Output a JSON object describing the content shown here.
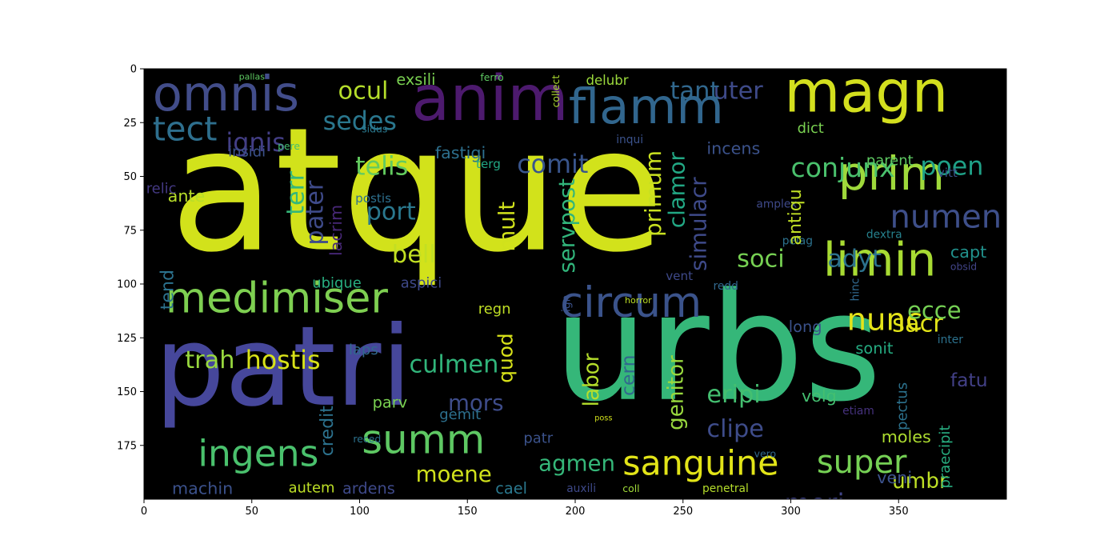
{
  "chart_data": {
    "type": "wordcloud",
    "title": "",
    "xlabel": "",
    "ylabel": "",
    "xlim": [
      0,
      400
    ],
    "ylim": [
      200,
      0
    ],
    "x_ticks": [
      "0",
      "50",
      "100",
      "150",
      "200",
      "250",
      "300",
      "350"
    ],
    "y_ticks": [
      "0",
      "25",
      "50",
      "75",
      "100",
      "125",
      "150",
      "175"
    ],
    "grid": false,
    "background": "#000000",
    "words": [
      {
        "text": "atque",
        "x": 12,
        "y": 25,
        "size": 155,
        "color": "#d2e21b"
      },
      {
        "text": "urbs",
        "x": 190,
        "y": 102,
        "size": 135,
        "color": "#35b779"
      },
      {
        "text": "patri",
        "x": 5,
        "y": 118,
        "size": 100,
        "color": "#46479b"
      },
      {
        "text": "anim",
        "x": 124,
        "y": 2,
        "size": 57,
        "color": "#4d1a6e"
      },
      {
        "text": "magn",
        "x": 297,
        "y": 0,
        "size": 52,
        "color": "#d3df1e"
      },
      {
        "text": "omnis",
        "x": 4,
        "y": 3,
        "size": 44,
        "color": "#424d8a"
      },
      {
        "text": "flamm",
        "x": 197,
        "y": 9,
        "size": 44,
        "color": "#31668e"
      },
      {
        "text": "prim",
        "x": 322,
        "y": 40,
        "size": 42,
        "color": "#9fd93b"
      },
      {
        "text": "limin",
        "x": 315,
        "y": 80,
        "size": 42,
        "color": "#a8db33"
      },
      {
        "text": "medimiser",
        "x": 10,
        "y": 99,
        "size": 38,
        "color": "#7ecf51"
      },
      {
        "text": "circum",
        "x": 193,
        "y": 101,
        "size": 38,
        "color": "#3b538b"
      },
      {
        "text": "summ",
        "x": 101,
        "y": 165,
        "size": 36,
        "color": "#5ec863"
      },
      {
        "text": "ingens",
        "x": 25,
        "y": 172,
        "size": 33,
        "color": "#4ac16d"
      },
      {
        "text": "sanguine",
        "x": 222,
        "y": 177,
        "size": 31,
        "color": "#e2e418"
      },
      {
        "text": "tect",
        "x": 4,
        "y": 22,
        "size": 30,
        "color": "#2e6f8e"
      },
      {
        "text": "numen",
        "x": 346,
        "y": 63,
        "size": 29,
        "color": "#3e4f8a"
      },
      {
        "text": "super",
        "x": 312,
        "y": 177,
        "size": 29,
        "color": "#75d054"
      },
      {
        "text": "nunc",
        "x": 326,
        "y": 111,
        "size": 28,
        "color": "#e5e419"
      },
      {
        "text": "conjunx",
        "x": 300,
        "y": 41,
        "size": 24,
        "color": "#4ac16d"
      },
      {
        "text": "mori",
        "x": 297,
        "y": 197,
        "size": 24,
        "color": "#404588"
      },
      {
        "text": "ignis",
        "x": 38,
        "y": 30,
        "size": 23,
        "color": "#433e85"
      },
      {
        "text": "sedes",
        "x": 83,
        "y": 20,
        "size": 23,
        "color": "#2a778e"
      },
      {
        "text": "telis",
        "x": 98,
        "y": 41,
        "size": 23,
        "color": "#63cb5f"
      },
      {
        "text": "comit",
        "x": 173,
        "y": 40,
        "size": 23,
        "color": "#39558c"
      },
      {
        "text": "poen",
        "x": 360,
        "y": 41,
        "size": 23,
        "color": "#1fa187"
      },
      {
        "text": "hostis",
        "x": 47,
        "y": 131,
        "size": 23,
        "color": "#d8e219"
      },
      {
        "text": "trah",
        "x": 19,
        "y": 131,
        "size": 22,
        "color": "#98d83e"
      },
      {
        "text": "culmen",
        "x": 123,
        "y": 133,
        "size": 22,
        "color": "#31b57b"
      },
      {
        "text": "adyt",
        "x": 317,
        "y": 84,
        "size": 22,
        "color": "#2c728e"
      },
      {
        "text": "soci",
        "x": 275,
        "y": 84,
        "size": 22,
        "color": "#77d153"
      },
      {
        "text": "ocul",
        "x": 90,
        "y": 6,
        "size": 22,
        "color": "#b5de2b"
      },
      {
        "text": "uter",
        "x": 264,
        "y": 6,
        "size": 22,
        "color": "#3e4a89"
      },
      {
        "text": "tant",
        "x": 244,
        "y": 6,
        "size": 22,
        "color": "#31688e"
      },
      {
        "text": "bell",
        "x": 115,
        "y": 82,
        "size": 22,
        "color": "#c2df23"
      },
      {
        "text": "port",
        "x": 103,
        "y": 62,
        "size": 22,
        "color": "#2a788e"
      },
      {
        "text": "sacr",
        "x": 347,
        "y": 114,
        "size": 22,
        "color": "#e2e418"
      },
      {
        "text": "ecce",
        "x": 354,
        "y": 108,
        "size": 21,
        "color": "#75d054"
      },
      {
        "text": "eripi",
        "x": 261,
        "y": 147,
        "size": 22,
        "color": "#44bf70"
      },
      {
        "text": "clipe",
        "x": 261,
        "y": 163,
        "size": 22,
        "color": "#3e4c8a"
      },
      {
        "text": "agmen",
        "x": 183,
        "y": 179,
        "size": 20,
        "color": "#35b779"
      },
      {
        "text": "mors",
        "x": 141,
        "y": 151,
        "size": 20,
        "color": "#3e4c8a"
      },
      {
        "text": "moene",
        "x": 126,
        "y": 184,
        "size": 20,
        "color": "#d0e11c"
      },
      {
        "text": "umbr",
        "x": 347,
        "y": 188,
        "size": 19,
        "color": "#bddf26"
      },
      {
        "text": "fatu",
        "x": 374,
        "y": 141,
        "size": 17,
        "color": "#424086"
      },
      {
        "text": "moles",
        "x": 342,
        "y": 168,
        "size": 15,
        "color": "#addc30"
      },
      {
        "text": "veni",
        "x": 340,
        "y": 187,
        "size": 15,
        "color": "#3b518b"
      },
      {
        "text": "capt",
        "x": 374,
        "y": 82,
        "size": 15,
        "color": "#21918c"
      },
      {
        "text": "volg",
        "x": 305,
        "y": 149,
        "size": 15,
        "color": "#44bf70"
      },
      {
        "text": "incens",
        "x": 261,
        "y": 34,
        "size": 15,
        "color": "#3b528b"
      },
      {
        "text": "fastigi",
        "x": 135,
        "y": 36,
        "size": 15,
        "color": "#2d708e"
      },
      {
        "text": "exsili",
        "x": 117,
        "y": 2,
        "size": 14,
        "color": "#7ad151"
      },
      {
        "text": "delubr",
        "x": 205,
        "y": 3,
        "size": 12,
        "color": "#9bd93c"
      },
      {
        "text": "dict",
        "x": 303,
        "y": 25,
        "size": 13,
        "color": "#7ad151"
      },
      {
        "text": "parent",
        "x": 335,
        "y": 40,
        "size": 13,
        "color": "#5ec962"
      },
      {
        "text": "ante",
        "x": 11,
        "y": 56,
        "size": 15,
        "color": "#b8de29"
      },
      {
        "text": "relic",
        "x": 1,
        "y": 53,
        "size": 13,
        "color": "#443983"
      },
      {
        "text": "insidi",
        "x": 39,
        "y": 36,
        "size": 13,
        "color": "#3b528b"
      },
      {
        "text": "ubique",
        "x": 78,
        "y": 97,
        "size": 13,
        "color": "#28ae80"
      },
      {
        "text": "aspici",
        "x": 119,
        "y": 97,
        "size": 13,
        "color": "#3e4989"
      },
      {
        "text": "laps",
        "x": 95,
        "y": 128,
        "size": 13,
        "color": "#31688e"
      },
      {
        "text": "regn",
        "x": 155,
        "y": 109,
        "size": 13,
        "color": "#c0df25"
      },
      {
        "text": "parv",
        "x": 106,
        "y": 152,
        "size": 14,
        "color": "#7ad151"
      },
      {
        "text": "gemit",
        "x": 137,
        "y": 158,
        "size": 13,
        "color": "#2d708e"
      },
      {
        "text": "patr",
        "x": 176,
        "y": 169,
        "size": 13,
        "color": "#3b528b"
      },
      {
        "text": "machin",
        "x": 13,
        "y": 192,
        "size": 15,
        "color": "#3b518b"
      },
      {
        "text": "autem",
        "x": 67,
        "y": 192,
        "size": 13,
        "color": "#bddf26"
      },
      {
        "text": "ardens",
        "x": 92,
        "y": 192,
        "size": 14,
        "color": "#3e4989"
      },
      {
        "text": "cael",
        "x": 163,
        "y": 192,
        "size": 14,
        "color": "#2a788e"
      },
      {
        "text": "sonit",
        "x": 330,
        "y": 127,
        "size": 14,
        "color": "#25ac82"
      },
      {
        "text": "long",
        "x": 299,
        "y": 117,
        "size": 14,
        "color": "#3b528b"
      },
      {
        "text": "amplex",
        "x": 284,
        "y": 61,
        "size": 10,
        "color": "#3e4989"
      },
      {
        "text": "pelag",
        "x": 296,
        "y": 78,
        "size": 10,
        "color": "#2c728e"
      },
      {
        "text": "vitt",
        "x": 368,
        "y": 46,
        "size": 11,
        "color": "#3b528b"
      },
      {
        "text": "terg",
        "x": 154,
        "y": 42,
        "size": 11,
        "color": "#22a884"
      },
      {
        "text": "inqui",
        "x": 219,
        "y": 31,
        "size": 10,
        "color": "#3b528b"
      },
      {
        "text": "postis",
        "x": 98,
        "y": 58,
        "size": 11,
        "color": "#2d708e"
      },
      {
        "text": "pere",
        "x": 62,
        "y": 34,
        "size": 9,
        "color": "#44bf70"
      },
      {
        "text": "vent",
        "x": 242,
        "y": 94,
        "size": 11,
        "color": "#3e4989"
      },
      {
        "text": "redd",
        "x": 264,
        "y": 99,
        "size": 10,
        "color": "#31688e"
      },
      {
        "text": "inter",
        "x": 368,
        "y": 124,
        "size": 10,
        "color": "#2c728e"
      },
      {
        "text": "etiam",
        "x": 324,
        "y": 157,
        "size": 10,
        "color": "#46327e"
      },
      {
        "text": "penetral",
        "x": 259,
        "y": 193,
        "size": 10,
        "color": "#b5de2b"
      },
      {
        "text": "auxili",
        "x": 196,
        "y": 193,
        "size": 10,
        "color": "#3e4989"
      },
      {
        "text": "coll",
        "x": 222,
        "y": 193,
        "size": 9,
        "color": "#a0da39"
      },
      {
        "text": "dextra",
        "x": 335,
        "y": 75,
        "size": 10,
        "color": "#26828e"
      },
      {
        "text": "obsid",
        "x": 374,
        "y": 90,
        "size": 9,
        "color": "#414487"
      },
      {
        "text": "horror",
        "x": 223,
        "y": 106,
        "size": 8,
        "color": "#bddf26"
      },
      {
        "text": "sidus",
        "x": 101,
        "y": 26,
        "size": 9,
        "color": "#2a788e"
      },
      {
        "text": "ferro",
        "x": 156,
        "y": 2,
        "size": 9,
        "color": "#5ec962"
      },
      {
        "text": "pallas",
        "x": 44,
        "y": 2,
        "size": 8,
        "color": "#5ec962"
      },
      {
        "text": "reced",
        "x": 97,
        "y": 170,
        "size": 9,
        "color": "#2c728e"
      },
      {
        "text": "vero",
        "x": 283,
        "y": 177,
        "size": 9,
        "color": "#31688e"
      },
      {
        "text": "poss",
        "x": 209,
        "y": 161,
        "size": 7,
        "color": "#d2e21b"
      }
    ],
    "vertical_words": [
      {
        "text": "tend",
        "x": 8,
        "y": 112,
        "size": 16,
        "color": "#2c728e"
      },
      {
        "text": "pater",
        "x": 75,
        "y": 82,
        "size": 22,
        "color": "#3e4a89"
      },
      {
        "text": "terr",
        "x": 66,
        "y": 68,
        "size": 22,
        "color": "#35b779"
      },
      {
        "text": "lacrim",
        "x": 86,
        "y": 87,
        "size": 15,
        "color": "#482878"
      },
      {
        "text": "mult",
        "x": 164,
        "y": 85,
        "size": 20,
        "color": "#d0e11c"
      },
      {
        "text": "servpost",
        "x": 192,
        "y": 95,
        "size": 20,
        "color": "#31b57b"
      },
      {
        "text": "primum",
        "x": 232,
        "y": 78,
        "size": 20,
        "color": "#c8e020"
      },
      {
        "text": "clamor",
        "x": 243,
        "y": 74,
        "size": 20,
        "color": "#22a884"
      },
      {
        "text": "simulacr",
        "x": 253,
        "y": 94,
        "size": 20,
        "color": "#3e4a89"
      },
      {
        "text": "antiqu",
        "x": 299,
        "y": 82,
        "size": 16,
        "color": "#c0df25"
      },
      {
        "text": "quod",
        "x": 164,
        "y": 146,
        "size": 18,
        "color": "#d8e219"
      },
      {
        "text": "labor",
        "x": 204,
        "y": 157,
        "size": 19,
        "color": "#b5de2b"
      },
      {
        "text": "cern",
        "x": 221,
        "y": 152,
        "size": 17,
        "color": "#31688e"
      },
      {
        "text": "genitor",
        "x": 243,
        "y": 168,
        "size": 19,
        "color": "#98d83e"
      },
      {
        "text": "credit",
        "x": 82,
        "y": 180,
        "size": 16,
        "color": "#2c728e"
      },
      {
        "text": "pectus",
        "x": 349,
        "y": 168,
        "size": 13,
        "color": "#2c728e"
      },
      {
        "text": "praecipit",
        "x": 369,
        "y": 195,
        "size": 13,
        "color": "#28ae80"
      },
      {
        "text": "hinc",
        "x": 328,
        "y": 108,
        "size": 10,
        "color": "#31688e"
      },
      {
        "text": "ign",
        "x": 194,
        "y": 113,
        "size": 10,
        "color": "#3b528b"
      },
      {
        "text": "collect",
        "x": 189,
        "y": 18,
        "size": 9,
        "color": "#addc30"
      }
    ]
  }
}
